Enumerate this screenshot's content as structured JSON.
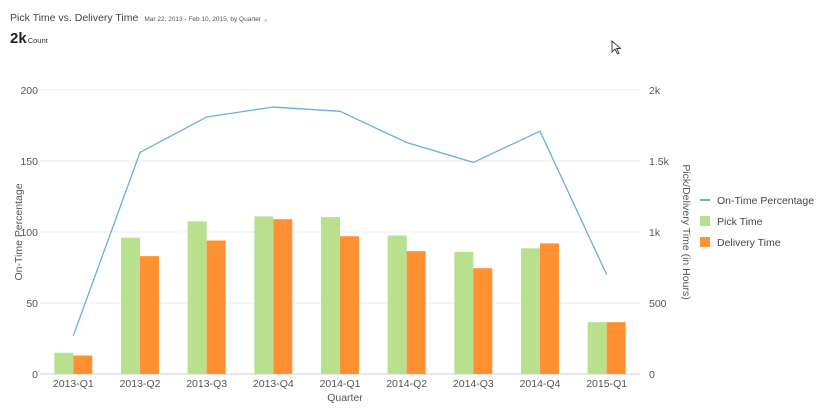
{
  "header": {
    "title": "Pick Time vs. Delivery Time",
    "filter": "Mar 22, 2013 - Feb 10, 2015, by Quarter",
    "metric_value": "2k",
    "metric_unit": "Count"
  },
  "chart_data": {
    "type": "bar",
    "title": "Pick Time vs. Delivery Time",
    "xlabel": "Quarter",
    "ylabel_left": "On-Time Percentage",
    "ylabel_right": "Pick/Delivery Time (in Hours)",
    "categories": [
      "2013-Q1",
      "2013-Q2",
      "2013-Q3",
      "2013-Q4",
      "2014-Q1",
      "2014-Q2",
      "2014-Q3",
      "2014-Q4",
      "2015-Q1"
    ],
    "yticks_left": [
      "0",
      "50",
      "100",
      "150",
      "200"
    ],
    "yticks_right": [
      "0",
      "500",
      "1k",
      "1.5k",
      "2k"
    ],
    "ylim_left": [
      0,
      200
    ],
    "ylim_right": [
      0,
      2000
    ],
    "series": [
      {
        "name": "On-Time Percentage",
        "type": "line",
        "axis": "left",
        "color": "#6aaee0",
        "values": [
          27,
          156,
          181,
          188,
          185,
          163,
          149,
          171,
          70
        ]
      },
      {
        "name": "Pick Time",
        "type": "bar",
        "axis": "right",
        "color": "#b8e08f",
        "values": [
          150,
          960,
          1075,
          1110,
          1105,
          975,
          860,
          885,
          365
        ]
      },
      {
        "name": "Delivery Time",
        "type": "bar",
        "axis": "right",
        "color": "#ff9132",
        "values": [
          130,
          830,
          940,
          1090,
          970,
          865,
          745,
          920,
          365
        ]
      }
    ],
    "grid": true,
    "legend": "right"
  },
  "icons": {
    "filter": "chevron-down-icon",
    "cursor": "mouse-pointer-icon"
  }
}
